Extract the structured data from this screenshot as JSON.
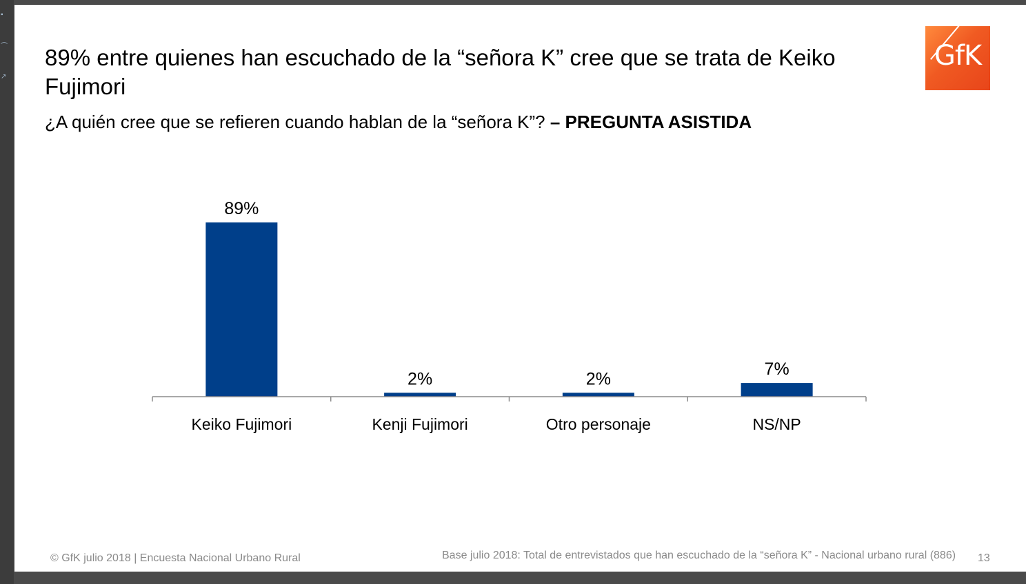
{
  "slide": {
    "title": "89% entre quienes han escuchado de la “señora K” cree que se trata de Keiko Fujimori",
    "question": "¿A quién cree que se refieren cuando hablan de la “señora K”?",
    "question_tag": "– PREGUNTA ASISTIDA",
    "logo_text": "GfK",
    "footer_left": "© GfK julio 2018 | Encuesta Nacional Urbano Rural",
    "footer_right": "Base julio 2018: Total de entrevistados que han escuchado de la “señora K” - Nacional urbano rural (886)",
    "page_number": "13"
  },
  "colors": {
    "bar": "#003f8a",
    "logo": "#f05a22"
  },
  "chart_data": {
    "type": "bar",
    "categories": [
      "Keiko Fujimori",
      "Kenji Fujimori",
      "Otro personaje",
      "NS/NP"
    ],
    "values": [
      89,
      2,
      2,
      7
    ],
    "data_labels": [
      "89%",
      "2%",
      "2%",
      "7%"
    ],
    "title": "",
    "xlabel": "",
    "ylabel": "",
    "ylim": [
      0,
      100
    ],
    "grid": false,
    "legend": "none"
  }
}
